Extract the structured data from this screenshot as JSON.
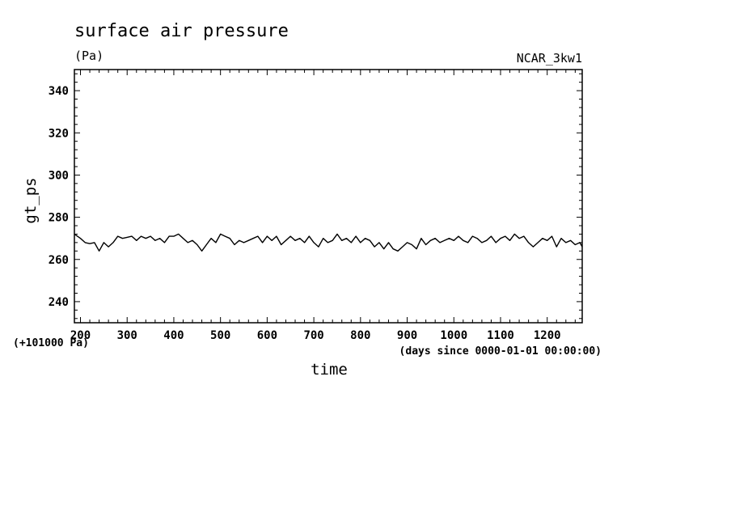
{
  "chart_data": {
    "type": "line",
    "title": "surface air pressure",
    "units": "(Pa)",
    "dataset": "NCAR_3kw1",
    "xlabel": "time",
    "xunits": "(days since 0000-01-01 00:00:00)",
    "ylabel": "gt_ps",
    "yoffset": "(+101000 Pa)",
    "xlim": [
      187,
      1275
    ],
    "ylim": [
      230,
      350
    ],
    "xticks": [
      200,
      300,
      400,
      500,
      600,
      700,
      800,
      900,
      1000,
      1100,
      1200
    ],
    "yticks": [
      240,
      260,
      280,
      300,
      320,
      340
    ],
    "series": [
      {
        "color": "#000000",
        "x": [
          187,
          200,
          210,
          220,
          230,
          240,
          250,
          260,
          270,
          280,
          290,
          300,
          310,
          320,
          330,
          340,
          350,
          360,
          370,
          380,
          390,
          400,
          410,
          420,
          430,
          440,
          450,
          460,
          470,
          480,
          490,
          500,
          510,
          520,
          530,
          540,
          550,
          560,
          570,
          580,
          590,
          600,
          610,
          620,
          630,
          640,
          650,
          660,
          670,
          680,
          690,
          700,
          710,
          720,
          730,
          740,
          750,
          760,
          770,
          780,
          790,
          800,
          810,
          820,
          830,
          840,
          850,
          860,
          870,
          880,
          890,
          900,
          910,
          920,
          930,
          940,
          950,
          960,
          970,
          980,
          990,
          1000,
          1010,
          1020,
          1030,
          1040,
          1050,
          1060,
          1070,
          1080,
          1090,
          1100,
          1110,
          1120,
          1130,
          1140,
          1150,
          1160,
          1170,
          1180,
          1190,
          1200,
          1210,
          1220,
          1230,
          1240,
          1250,
          1260,
          1270,
          1275
        ],
        "y": [
          272,
          270,
          268,
          267.5,
          268,
          264,
          268,
          266,
          268,
          271,
          270,
          270.5,
          271,
          269,
          271,
          270,
          271,
          269,
          270,
          268,
          271,
          271,
          272,
          270,
          268,
          269,
          267,
          264,
          267,
          270,
          268,
          272,
          271,
          270,
          267,
          269,
          268,
          269,
          270,
          271,
          268,
          271,
          269,
          271,
          267,
          269,
          271,
          269,
          270,
          268,
          271,
          268,
          266,
          270,
          268,
          269,
          272,
          269,
          270,
          268,
          271,
          268,
          270,
          269,
          266,
          268,
          265,
          268,
          265,
          264,
          266,
          268,
          267,
          265,
          270,
          267,
          269,
          270,
          268,
          269,
          270,
          269,
          271,
          269,
          268,
          271,
          270,
          268,
          269,
          271,
          268,
          270,
          271,
          269,
          272,
          270,
          271,
          268,
          266,
          268,
          270,
          269,
          271,
          266,
          270,
          268,
          269,
          267,
          268,
          266
        ]
      }
    ]
  }
}
